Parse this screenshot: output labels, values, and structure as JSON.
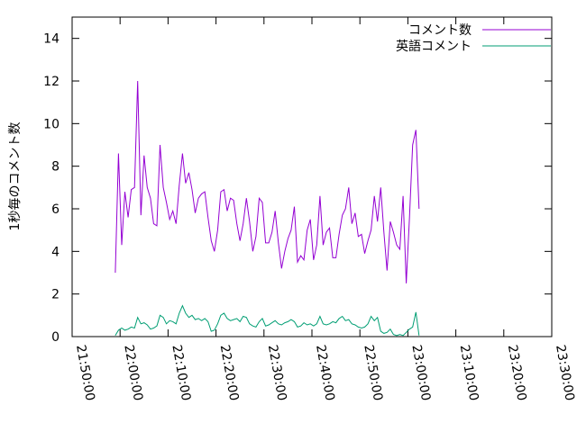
{
  "chart_data": {
    "type": "line",
    "title": "",
    "xlabel": "",
    "ylabel": "1秒毎のコメント数",
    "x_ticks": [
      "21:50:00",
      "22:00:00",
      "22:10:00",
      "22:20:00",
      "22:30:00",
      "22:40:00",
      "22:50:00",
      "23:00:00",
      "23:10:00",
      "23:20:00",
      "23:30:00"
    ],
    "y_ticks": [
      "0",
      "2",
      "4",
      "6",
      "8",
      "10",
      "12",
      "14"
    ],
    "xlim": [
      "21:50:00",
      "23:30:00"
    ],
    "ylim": [
      0,
      15
    ],
    "grid": false,
    "legend_position": "top-right",
    "series": [
      {
        "name": "コメント数",
        "color": "#9400d3",
        "points": [
          [
            "21:59:00",
            3.0
          ],
          [
            "21:59:40",
            8.6
          ],
          [
            "22:00:20",
            4.3
          ],
          [
            "22:01:00",
            6.8
          ],
          [
            "22:01:40",
            5.6
          ],
          [
            "22:02:20",
            6.9
          ],
          [
            "22:03:00",
            7.0
          ],
          [
            "22:03:40",
            12.0
          ],
          [
            "22:04:20",
            5.7
          ],
          [
            "22:05:00",
            8.5
          ],
          [
            "22:05:40",
            7.0
          ],
          [
            "22:06:20",
            6.5
          ],
          [
            "22:07:00",
            5.3
          ],
          [
            "22:07:40",
            5.2
          ],
          [
            "22:08:20",
            9.0
          ],
          [
            "22:09:00",
            7.0
          ],
          [
            "22:09:40",
            6.3
          ],
          [
            "22:10:20",
            5.5
          ],
          [
            "22:11:00",
            5.9
          ],
          [
            "22:11:40",
            5.3
          ],
          [
            "22:12:20",
            7.1
          ],
          [
            "22:13:00",
            8.6
          ],
          [
            "22:13:40",
            7.2
          ],
          [
            "22:14:20",
            7.7
          ],
          [
            "22:15:00",
            6.9
          ],
          [
            "22:15:40",
            5.8
          ],
          [
            "22:16:20",
            6.5
          ],
          [
            "22:17:00",
            6.7
          ],
          [
            "22:17:40",
            6.8
          ],
          [
            "22:18:20",
            5.6
          ],
          [
            "22:19:00",
            4.5
          ],
          [
            "22:19:40",
            4.0
          ],
          [
            "22:20:20",
            5.0
          ],
          [
            "22:21:00",
            6.8
          ],
          [
            "22:21:40",
            6.9
          ],
          [
            "22:22:20",
            5.9
          ],
          [
            "22:23:00",
            6.5
          ],
          [
            "22:23:40",
            6.4
          ],
          [
            "22:24:20",
            5.3
          ],
          [
            "22:25:00",
            4.5
          ],
          [
            "22:25:40",
            5.3
          ],
          [
            "22:26:20",
            6.5
          ],
          [
            "22:27:00",
            5.4
          ],
          [
            "22:27:40",
            4.0
          ],
          [
            "22:28:20",
            4.7
          ],
          [
            "22:29:00",
            6.5
          ],
          [
            "22:29:40",
            6.3
          ],
          [
            "22:30:20",
            4.4
          ],
          [
            "22:31:00",
            4.4
          ],
          [
            "22:31:40",
            4.9
          ],
          [
            "22:32:20",
            5.9
          ],
          [
            "22:33:00",
            4.4
          ],
          [
            "22:33:40",
            3.2
          ],
          [
            "22:34:20",
            4.0
          ],
          [
            "22:35:00",
            4.6
          ],
          [
            "22:35:40",
            5.0
          ],
          [
            "22:36:20",
            6.1
          ],
          [
            "22:37:00",
            3.5
          ],
          [
            "22:37:40",
            3.8
          ],
          [
            "22:38:20",
            3.6
          ],
          [
            "22:39:00",
            5.0
          ],
          [
            "22:39:40",
            5.5
          ],
          [
            "22:40:20",
            3.6
          ],
          [
            "22:41:00",
            4.3
          ],
          [
            "22:41:40",
            6.6
          ],
          [
            "22:42:20",
            4.3
          ],
          [
            "22:43:00",
            4.9
          ],
          [
            "22:43:40",
            5.1
          ],
          [
            "22:44:20",
            3.7
          ],
          [
            "22:45:00",
            3.7
          ],
          [
            "22:45:40",
            4.8
          ],
          [
            "22:46:20",
            5.7
          ],
          [
            "22:47:00",
            6.0
          ],
          [
            "22:47:40",
            7.0
          ],
          [
            "22:48:20",
            5.3
          ],
          [
            "22:49:00",
            5.8
          ],
          [
            "22:49:40",
            4.7
          ],
          [
            "22:50:20",
            4.8
          ],
          [
            "22:51:00",
            3.9
          ],
          [
            "22:51:40",
            4.5
          ],
          [
            "22:52:20",
            5.0
          ],
          [
            "22:53:00",
            6.6
          ],
          [
            "22:53:40",
            5.4
          ],
          [
            "22:54:20",
            7.0
          ],
          [
            "22:55:00",
            4.9
          ],
          [
            "22:55:40",
            3.1
          ],
          [
            "22:56:20",
            5.4
          ],
          [
            "22:57:00",
            4.9
          ],
          [
            "22:57:40",
            4.3
          ],
          [
            "22:58:20",
            4.1
          ],
          [
            "22:59:00",
            6.6
          ],
          [
            "22:59:40",
            2.5
          ],
          [
            "23:00:20",
            5.6
          ],
          [
            "23:01:00",
            9.0
          ],
          [
            "23:01:40",
            9.7
          ],
          [
            "23:02:20",
            6.0
          ]
        ]
      },
      {
        "name": "英語コメント",
        "color": "#009e73",
        "points": [
          [
            "21:59:00",
            0.05
          ],
          [
            "21:59:40",
            0.3
          ],
          [
            "22:00:20",
            0.4
          ],
          [
            "22:01:00",
            0.3
          ],
          [
            "22:01:40",
            0.35
          ],
          [
            "22:02:20",
            0.45
          ],
          [
            "22:03:00",
            0.4
          ],
          [
            "22:03:40",
            0.9
          ],
          [
            "22:04:20",
            0.6
          ],
          [
            "22:05:00",
            0.65
          ],
          [
            "22:05:40",
            0.55
          ],
          [
            "22:06:20",
            0.35
          ],
          [
            "22:07:00",
            0.4
          ],
          [
            "22:07:40",
            0.5
          ],
          [
            "22:08:20",
            1.0
          ],
          [
            "22:09:00",
            0.9
          ],
          [
            "22:09:40",
            0.6
          ],
          [
            "22:10:20",
            0.75
          ],
          [
            "22:11:00",
            0.7
          ],
          [
            "22:11:40",
            0.6
          ],
          [
            "22:12:20",
            1.1
          ],
          [
            "22:13:00",
            1.45
          ],
          [
            "22:13:40",
            1.1
          ],
          [
            "22:14:20",
            0.9
          ],
          [
            "22:15:00",
            1.0
          ],
          [
            "22:15:40",
            0.8
          ],
          [
            "22:16:20",
            0.85
          ],
          [
            "22:17:00",
            0.75
          ],
          [
            "22:17:40",
            0.85
          ],
          [
            "22:18:20",
            0.7
          ],
          [
            "22:19:00",
            0.25
          ],
          [
            "22:19:40",
            0.3
          ],
          [
            "22:20:20",
            0.6
          ],
          [
            "22:21:00",
            1.0
          ],
          [
            "22:21:40",
            1.1
          ],
          [
            "22:22:20",
            0.85
          ],
          [
            "22:23:00",
            0.75
          ],
          [
            "22:23:40",
            0.8
          ],
          [
            "22:24:20",
            0.85
          ],
          [
            "22:25:00",
            0.7
          ],
          [
            "22:25:40",
            0.95
          ],
          [
            "22:26:20",
            0.9
          ],
          [
            "22:27:00",
            0.6
          ],
          [
            "22:27:40",
            0.5
          ],
          [
            "22:28:20",
            0.45
          ],
          [
            "22:29:00",
            0.7
          ],
          [
            "22:29:40",
            0.85
          ],
          [
            "22:30:20",
            0.5
          ],
          [
            "22:31:00",
            0.55
          ],
          [
            "22:31:40",
            0.65
          ],
          [
            "22:32:20",
            0.75
          ],
          [
            "22:33:00",
            0.6
          ],
          [
            "22:33:40",
            0.55
          ],
          [
            "22:34:20",
            0.65
          ],
          [
            "22:35:00",
            0.7
          ],
          [
            "22:35:40",
            0.8
          ],
          [
            "22:36:20",
            0.7
          ],
          [
            "22:37:00",
            0.45
          ],
          [
            "22:37:40",
            0.5
          ],
          [
            "22:38:20",
            0.65
          ],
          [
            "22:39:00",
            0.55
          ],
          [
            "22:39:40",
            0.6
          ],
          [
            "22:40:20",
            0.5
          ],
          [
            "22:41:00",
            0.6
          ],
          [
            "22:41:40",
            0.95
          ],
          [
            "22:42:20",
            0.6
          ],
          [
            "22:43:00",
            0.55
          ],
          [
            "22:43:40",
            0.6
          ],
          [
            "22:44:20",
            0.7
          ],
          [
            "22:45:00",
            0.65
          ],
          [
            "22:45:40",
            0.85
          ],
          [
            "22:46:20",
            0.95
          ],
          [
            "22:47:00",
            0.75
          ],
          [
            "22:47:40",
            0.8
          ],
          [
            "22:48:20",
            0.6
          ],
          [
            "22:49:00",
            0.55
          ],
          [
            "22:49:40",
            0.45
          ],
          [
            "22:50:20",
            0.4
          ],
          [
            "22:51:00",
            0.45
          ],
          [
            "22:51:40",
            0.6
          ],
          [
            "22:52:20",
            0.95
          ],
          [
            "22:53:00",
            0.75
          ],
          [
            "22:53:40",
            0.9
          ],
          [
            "22:54:20",
            0.25
          ],
          [
            "22:55:00",
            0.15
          ],
          [
            "22:55:40",
            0.2
          ],
          [
            "22:56:20",
            0.35
          ],
          [
            "22:57:00",
            0.1
          ],
          [
            "22:57:40",
            0.05
          ],
          [
            "22:58:20",
            0.1
          ],
          [
            "22:59:00",
            0.05
          ],
          [
            "22:59:40",
            0.2
          ],
          [
            "23:00:20",
            0.35
          ],
          [
            "23:01:00",
            0.45
          ],
          [
            "23:01:40",
            1.15
          ],
          [
            "23:02:20",
            0.05
          ]
        ]
      }
    ]
  }
}
